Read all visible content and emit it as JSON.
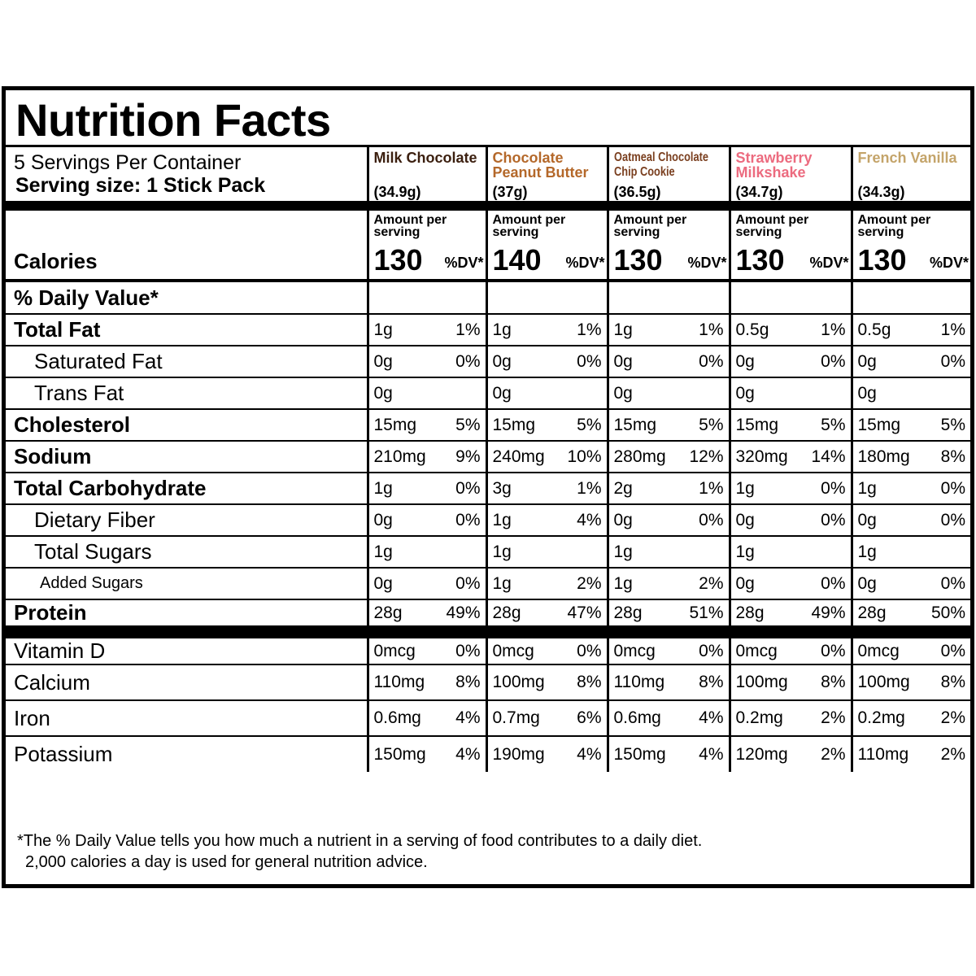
{
  "title": "Nutrition Facts",
  "servings_per_container": "5 Servings Per Container",
  "serving_size": "Serving size: 1 Stick Pack",
  "flavors": [
    {
      "name": "Milk Chocolate",
      "weight": "(34.9g)",
      "color": "#3b1f0f",
      "calories": "130"
    },
    {
      "name": "Chocolate Peanut Butter",
      "weight": "(37g)",
      "color": "#b4682a",
      "calories": "140"
    },
    {
      "name": "Oatmeal Chocolate Chip Cookie",
      "weight": "(36.5g)",
      "color": "#7a3f1f",
      "calories": "130"
    },
    {
      "name": "Strawberry Milkshake",
      "weight": "(34.7g)",
      "color": "#ec6b7f",
      "calories": "130"
    },
    {
      "name": "French Vanilla",
      "weight": "(34.3g)",
      "color": "#c4a46a",
      "calories": "130"
    }
  ],
  "amount_per_serving": "Amount per serving",
  "calories_label": "Calories",
  "dv_label": "%DV*",
  "daily_value_heading": "% Daily Value*",
  "nutrients": [
    {
      "label": "Total Fat",
      "style": "bold",
      "values": [
        [
          "1g",
          "1%"
        ],
        [
          "1g",
          "1%"
        ],
        [
          "1g",
          "1%"
        ],
        [
          "0.5g",
          "1%"
        ],
        [
          "0.5g",
          "1%"
        ]
      ]
    },
    {
      "label": "Saturated Fat",
      "style": "indent",
      "values": [
        [
          "0g",
          "0%"
        ],
        [
          "0g",
          "0%"
        ],
        [
          "0g",
          "0%"
        ],
        [
          "0g",
          "0%"
        ],
        [
          "0g",
          "0%"
        ]
      ]
    },
    {
      "label": "Trans Fat",
      "style": "indent",
      "values": [
        [
          "0g",
          ""
        ],
        [
          "0g",
          ""
        ],
        [
          "0g",
          ""
        ],
        [
          "0g",
          ""
        ],
        [
          "0g",
          ""
        ]
      ]
    },
    {
      "label": "Cholesterol",
      "style": "bold",
      "values": [
        [
          "15mg",
          "5%"
        ],
        [
          "15mg",
          "5%"
        ],
        [
          "15mg",
          "5%"
        ],
        [
          "15mg",
          "5%"
        ],
        [
          "15mg",
          "5%"
        ]
      ]
    },
    {
      "label": "Sodium",
      "style": "bold",
      "values": [
        [
          "210mg",
          "9%"
        ],
        [
          "240mg",
          "10%"
        ],
        [
          "280mg",
          "12%"
        ],
        [
          "320mg",
          "14%"
        ],
        [
          "180mg",
          "8%"
        ]
      ]
    },
    {
      "label": "Total Carbohydrate",
      "style": "bold",
      "values": [
        [
          "1g",
          "0%"
        ],
        [
          "3g",
          "1%"
        ],
        [
          "2g",
          "1%"
        ],
        [
          "1g",
          "0%"
        ],
        [
          "1g",
          "0%"
        ]
      ]
    },
    {
      "label": "Dietary Fiber",
      "style": "indent",
      "values": [
        [
          "0g",
          "0%"
        ],
        [
          "1g",
          "4%"
        ],
        [
          "0g",
          "0%"
        ],
        [
          "0g",
          "0%"
        ],
        [
          "0g",
          "0%"
        ]
      ]
    },
    {
      "label": "Total Sugars",
      "style": "indent",
      "values": [
        [
          "1g",
          ""
        ],
        [
          "1g",
          ""
        ],
        [
          "1g",
          ""
        ],
        [
          "1g",
          ""
        ],
        [
          "1g",
          ""
        ]
      ]
    },
    {
      "label": "Added Sugars",
      "style": "indent2",
      "values": [
        [
          "0g",
          "0%"
        ],
        [
          "1g",
          "2%"
        ],
        [
          "1g",
          "2%"
        ],
        [
          "0g",
          "0%"
        ],
        [
          "0g",
          "0%"
        ]
      ]
    },
    {
      "label": "Protein",
      "style": "bold",
      "values": [
        [
          "28g",
          "49%"
        ],
        [
          "28g",
          "47%"
        ],
        [
          "28g",
          "51%"
        ],
        [
          "28g",
          "49%"
        ],
        [
          "28g",
          "50%"
        ]
      ]
    }
  ],
  "minerals": [
    {
      "label": "Vitamin D",
      "values": [
        [
          "0mcg",
          "0%"
        ],
        [
          "0mcg",
          "0%"
        ],
        [
          "0mcg",
          "0%"
        ],
        [
          "0mcg",
          "0%"
        ],
        [
          "0mcg",
          "0%"
        ]
      ]
    },
    {
      "label": "Calcium",
      "values": [
        [
          "110mg",
          "8%"
        ],
        [
          "100mg",
          "8%"
        ],
        [
          "110mg",
          "8%"
        ],
        [
          "100mg",
          "8%"
        ],
        [
          "100mg",
          "8%"
        ]
      ]
    },
    {
      "label": "Iron",
      "values": [
        [
          "0.6mg",
          "4%"
        ],
        [
          "0.7mg",
          "6%"
        ],
        [
          "0.6mg",
          "4%"
        ],
        [
          "0.2mg",
          "2%"
        ],
        [
          "0.2mg",
          "2%"
        ]
      ]
    },
    {
      "label": "Potassium",
      "values": [
        [
          "150mg",
          "4%"
        ],
        [
          "190mg",
          "4%"
        ],
        [
          "150mg",
          "4%"
        ],
        [
          "120mg",
          "2%"
        ],
        [
          "110mg",
          "2%"
        ]
      ]
    }
  ],
  "footnote": {
    "line1": "*The % Daily Value tells you how much a nutrient in a serving of food contributes to a daily diet.",
    "line2": "2,000 calories a day is used for general nutrition advice."
  }
}
